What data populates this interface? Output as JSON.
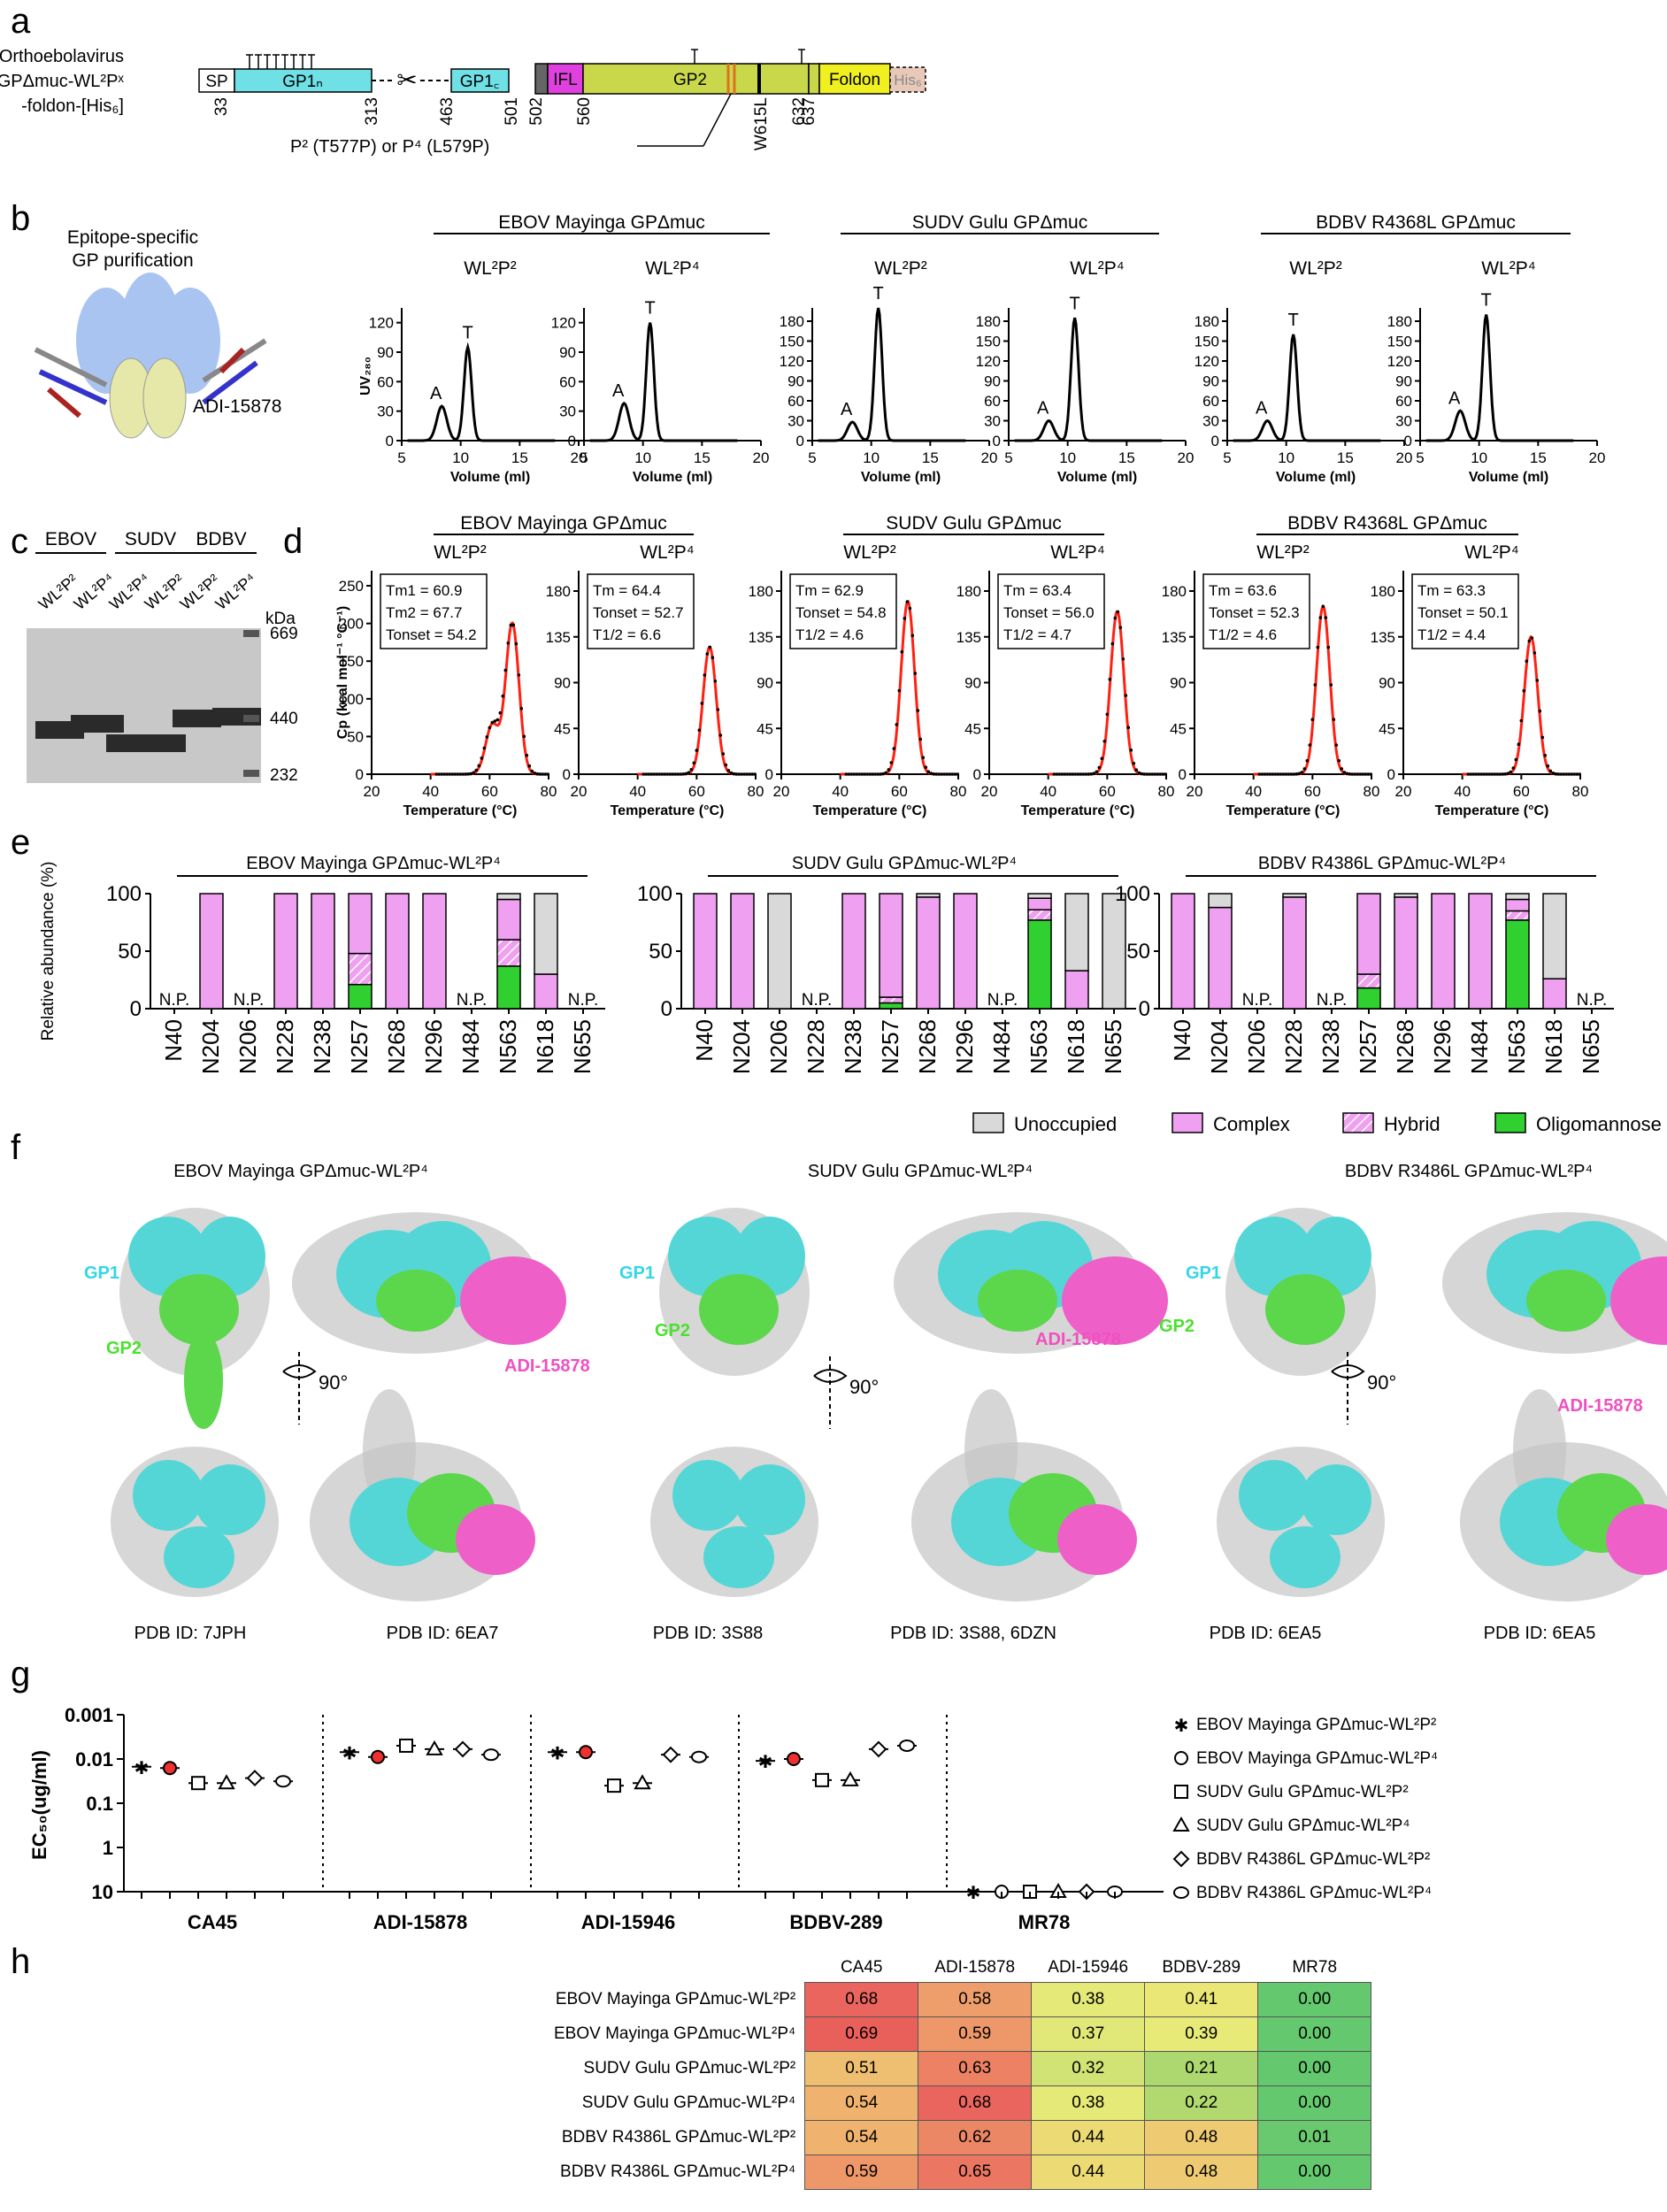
{
  "panels": {
    "a": "a",
    "b": "b",
    "c": "c",
    "d": "d",
    "e": "e",
    "f": "f",
    "g": "g",
    "h": "h"
  },
  "a": {
    "label_lines": [
      "Orthoebolavirus",
      "GPΔmuc-WL²Pˣ",
      "-foldon-[His₆]"
    ],
    "segments": [
      "SP",
      "GP1N",
      "GP1C",
      "IFL",
      "GP2",
      "Foldon",
      "His6"
    ],
    "numbers": [
      "33",
      "313",
      "463",
      "501",
      "502",
      "560",
      "W615L",
      "632",
      "637"
    ],
    "mutation_note": "P² (T577P) or P⁴ (L579P)",
    "colors": {
      "gp1": "#6fe0e6",
      "ifl": "#e040e0",
      "gp2": "#c8d84a",
      "foldon": "#f0f020",
      "his": "#e8c8b8",
      "cleave": "#e07020"
    }
  },
  "b": {
    "purification_title": [
      "Epitope-specific",
      "GP purification"
    ],
    "antibody": "ADI-15878",
    "groups": [
      "EBOV Mayinga GPΔmuc",
      "SUDV Gulu GPΔmuc",
      "BDBV R4368L GPΔmuc"
    ],
    "subtitles": [
      "WL²P²",
      "WL²P⁴",
      "WL²P²",
      "WL²P⁴",
      "WL²P²",
      "WL²P⁴"
    ],
    "ylabel": "UV₂₈₀",
    "xlabel": "Volume (ml)",
    "peak_labels": [
      "A",
      "T"
    ],
    "yticks_first": [
      "0",
      "30",
      "60",
      "90",
      "120"
    ],
    "yticks_other": [
      "0",
      "30",
      "60",
      "90",
      "120",
      "150",
      "180"
    ],
    "xticks": [
      "5",
      "10",
      "15",
      "20"
    ]
  },
  "c": {
    "groups": [
      "EBOV",
      "SUDV",
      "BDBV"
    ],
    "lanes": [
      "WL²P²",
      "WL²P⁴",
      "WL²P⁴",
      "WL²P²",
      "WL²P²",
      "WL²P⁴"
    ],
    "unit": "kDa",
    "markers": [
      "669",
      "440",
      "232"
    ]
  },
  "d": {
    "groups": [
      "EBOV Mayinga GPΔmuc",
      "SUDV Gulu GPΔmuc",
      "BDBV R4368L GPΔmuc"
    ],
    "subtitles": [
      "WL²P²",
      "WL²P⁴",
      "WL²P²",
      "WL²P⁴",
      "WL²P²",
      "WL²P⁴"
    ],
    "ylabel": "Cp (kcal mol⁻¹ °C⁻¹)",
    "xlabel": "Temperature (°C)",
    "boxes": [
      [
        "Tm1 = 60.9",
        "Tm2 = 67.7",
        "Tonset = 54.2"
      ],
      [
        "Tm = 64.4",
        "Tonset = 52.7",
        "T1/2 = 6.6"
      ],
      [
        "Tm = 62.9",
        "Tonset = 54.8",
        "T1/2 = 4.6"
      ],
      [
        "Tm = 63.4",
        "Tonset = 56.0",
        "T1/2 = 4.7"
      ],
      [
        "Tm = 63.6",
        "Tonset = 52.3",
        "T1/2 = 4.6"
      ],
      [
        "Tm = 63.3",
        "Tonset = 50.1",
        "T1/2 = 4.4"
      ]
    ],
    "yticks_first": [
      "0",
      "50",
      "100",
      "150",
      "200",
      "250"
    ],
    "yticks_other": [
      "0",
      "45",
      "90",
      "135",
      "180"
    ],
    "xticks": [
      "20",
      "40",
      "60",
      "80"
    ]
  },
  "e": {
    "titles": [
      "EBOV Mayinga GPΔmuc-WL²P⁴",
      "SUDV Gulu GPΔmuc-WL²P⁴",
      "BDBV R4386L GPΔmuc-WL²P⁴"
    ],
    "ylabel": "Relative abundance (%)",
    "np": "N.P.",
    "sites": [
      "N40",
      "N204",
      "N206",
      "N228",
      "N238",
      "N257",
      "N268",
      "N296",
      "N484",
      "N563",
      "N618",
      "N655"
    ],
    "legend": [
      "Unoccupied",
      "Complex",
      "Hybrid",
      "Oligomannose"
    ],
    "colors": {
      "unoccupied": "#d9d9d9",
      "complex": "#f0a0f0",
      "hybrid": "#f6d0f6",
      "oligomannose": "#30d030"
    }
  },
  "f": {
    "titles": [
      "EBOV Mayinga GPΔmuc-WL²P⁴",
      "SUDV Gulu GPΔmuc-WL²P⁴",
      "BDBV R3486L GPΔmuc-WL²P⁴"
    ],
    "labels": {
      "gp1": "GP1",
      "gp2": "GP2",
      "antibody": "ADI-15878",
      "rotation": "90°"
    },
    "pdb": [
      "PDB ID: 7JPH",
      "PDB ID: 6EA7",
      "PDB ID: 3S88",
      "PDB ID: 3S88, 6DZN",
      "PDB ID: 6EA5",
      "PDB ID: 6EA5"
    ]
  },
  "g": {
    "ylabel": "EC₅₀(ug/ml)",
    "yticks": [
      "0.001",
      "0.01",
      "0.1",
      "1",
      "10"
    ],
    "groups": [
      "CA45",
      "ADI-15878",
      "ADI-15946",
      "BDBV-289",
      "MR78"
    ],
    "legend": [
      "EBOV Mayinga GPΔmuc-WL²P²",
      "EBOV Mayinga GPΔmuc-WL²P⁴",
      "SUDV Gulu GPΔmuc-WL²P²",
      "SUDV Gulu GPΔmuc-WL²P⁴",
      "BDBV R4386L GPΔmuc-WL²P²",
      "BDBV R4386L GPΔmuc-WL²P⁴"
    ]
  },
  "h": {
    "columns": [
      "CA45",
      "ADI-15878",
      "ADI-15946",
      "BDBV-289",
      "MR78"
    ],
    "rows": [
      {
        "label": "EBOV Mayinga GPΔmuc-WL²P²",
        "values": [
          "0.68",
          "0.58",
          "0.38",
          "0.41",
          "0.00"
        ]
      },
      {
        "label": "EBOV Mayinga GPΔmuc-WL²P⁴",
        "values": [
          "0.69",
          "0.59",
          "0.37",
          "0.39",
          "0.00"
        ]
      },
      {
        "label": "SUDV Gulu GPΔmuc-WL²P²",
        "values": [
          "0.51",
          "0.63",
          "0.32",
          "0.21",
          "0.00"
        ]
      },
      {
        "label": "SUDV Gulu GPΔmuc-WL²P⁴",
        "values": [
          "0.54",
          "0.68",
          "0.38",
          "0.22",
          "0.00"
        ]
      },
      {
        "label": "BDBV R4386L GPΔmuc-WL²P²",
        "values": [
          "0.54",
          "0.62",
          "0.44",
          "0.48",
          "0.01"
        ]
      },
      {
        "label": "BDBV R4386L GPΔmuc-WL²P⁴",
        "values": [
          "0.59",
          "0.65",
          "0.44",
          "0.48",
          "0.00"
        ]
      }
    ]
  },
  "chart_data": [
    {
      "type": "line",
      "panel": "b",
      "xlabel": "Volume (ml)",
      "ylabel": "UV₂₈₀",
      "xlim": [
        5,
        20
      ],
      "series": [
        {
          "name": "WL²P²",
          "group": "EBOV",
          "peaks": [
            {
              "label": "A",
              "x": 8.4,
              "y": 35
            },
            {
              "label": "T",
              "x": 10.6,
              "y": 95
            }
          ]
        },
        {
          "name": "WL²P⁴",
          "group": "EBOV",
          "peaks": [
            {
              "label": "A",
              "x": 8.4,
              "y": 38
            },
            {
              "label": "T",
              "x": 10.6,
              "y": 120
            }
          ]
        },
        {
          "name": "WL²P²",
          "group": "SUDV",
          "peaks": [
            {
              "label": "A",
              "x": 8.4,
              "y": 28
            },
            {
              "label": "T",
              "x": 10.6,
              "y": 200
            }
          ]
        },
        {
          "name": "WL²P⁴",
          "group": "SUDV",
          "peaks": [
            {
              "label": "A",
              "x": 8.4,
              "y": 30
            },
            {
              "label": "T",
              "x": 10.6,
              "y": 185
            }
          ]
        },
        {
          "name": "WL²P²",
          "group": "BDBV",
          "peaks": [
            {
              "label": "A",
              "x": 8.4,
              "y": 30
            },
            {
              "label": "T",
              "x": 10.6,
              "y": 160
            }
          ]
        },
        {
          "name": "WL²P⁴",
          "group": "BDBV",
          "peaks": [
            {
              "label": "A",
              "x": 8.4,
              "y": 45
            },
            {
              "label": "T",
              "x": 10.6,
              "y": 190
            }
          ]
        }
      ]
    },
    {
      "type": "line",
      "panel": "d",
      "xlabel": "Temperature (°C)",
      "ylabel": "Cp (kcal mol⁻¹ °C⁻¹)",
      "xlim": [
        20,
        80
      ],
      "series": [
        {
          "name": "WL²P²",
          "group": "EBOV",
          "peaks": [
            {
              "x": 60.9,
              "y": 65
            },
            {
              "x": 67.7,
              "y": 200
            }
          ]
        },
        {
          "name": "WL²P⁴",
          "group": "EBOV",
          "peaks": [
            {
              "x": 64.4,
              "y": 125
            }
          ]
        },
        {
          "name": "WL²P²",
          "group": "SUDV",
          "peaks": [
            {
              "x": 62.9,
              "y": 170
            }
          ]
        },
        {
          "name": "WL²P⁴",
          "group": "SUDV",
          "peaks": [
            {
              "x": 63.4,
              "y": 160
            }
          ]
        },
        {
          "name": "WL²P²",
          "group": "BDBV",
          "peaks": [
            {
              "x": 63.6,
              "y": 165
            }
          ]
        },
        {
          "name": "WL²P⁴",
          "group": "BDBV",
          "peaks": [
            {
              "x": 63.3,
              "y": 135
            }
          ]
        }
      ]
    },
    {
      "type": "bar",
      "panel": "e",
      "categories": [
        "N40",
        "N204",
        "N206",
        "N228",
        "N238",
        "N257",
        "N268",
        "N296",
        "N484",
        "N563",
        "N618",
        "N655"
      ],
      "series": [
        {
          "name": "EBOV Mayinga GPΔmuc-WL²P⁴",
          "bars": [
            null,
            [
              0,
              100,
              0,
              0
            ],
            null,
            [
              0,
              100,
              0,
              0
            ],
            [
              0,
              100,
              0,
              0
            ],
            [
              0,
              52,
              27,
              21
            ],
            [
              0,
              100,
              0,
              0
            ],
            [
              0,
              100,
              0,
              0
            ],
            null,
            [
              5,
              35,
              23,
              37
            ],
            [
              70,
              30,
              0,
              0
            ],
            null
          ]
        },
        {
          "name": "SUDV Gulu GPΔmuc-WL²P⁴",
          "bars": [
            [
              0,
              100,
              0,
              0
            ],
            [
              0,
              100,
              0,
              0
            ],
            [
              100,
              0,
              0,
              0
            ],
            null,
            [
              0,
              100,
              0,
              0
            ],
            [
              0,
              90,
              5,
              5
            ],
            [
              3,
              97,
              0,
              0
            ],
            [
              0,
              100,
              0,
              0
            ],
            null,
            [
              4,
              10,
              9,
              77
            ],
            [
              67,
              33,
              0,
              0
            ],
            [
              100,
              0,
              0,
              0
            ]
          ]
        },
        {
          "name": "BDBV R4386L GPΔmuc-WL²P⁴",
          "bars": [
            [
              0,
              100,
              0,
              0
            ],
            [
              12,
              88,
              0,
              0
            ],
            null,
            [
              3,
              97,
              0,
              0
            ],
            null,
            [
              0,
              70,
              12,
              18
            ],
            [
              3,
              97,
              0,
              0
            ],
            [
              0,
              100,
              0,
              0
            ],
            [
              0,
              100,
              0,
              0
            ],
            [
              5,
              10,
              8,
              77
            ],
            [
              74,
              26,
              0,
              0
            ],
            null
          ]
        }
      ],
      "stack_order": [
        "Unoccupied",
        "Complex",
        "Hybrid",
        "Oligomannose"
      ]
    },
    {
      "type": "scatter",
      "panel": "g",
      "yscale": "log-reversed",
      "ylim": [
        0.001,
        10
      ],
      "categories": [
        "CA45",
        "ADI-15878",
        "ADI-15946",
        "BDBV-289",
        "MR78"
      ],
      "series": [
        {
          "name": "EBOV Mayinga GPΔmuc-WL²P²",
          "values": [
            0.015,
            0.007,
            0.007,
            0.011,
            10
          ]
        },
        {
          "name": "EBOV Mayinga GPΔmuc-WL²P⁴",
          "values": [
            0.016,
            0.009,
            0.007,
            0.01,
            10
          ]
        },
        {
          "name": "SUDV Gulu GPΔmuc-WL²P²",
          "values": [
            0.035,
            0.005,
            0.04,
            0.03,
            10
          ]
        },
        {
          "name": "SUDV Gulu GPΔmuc-WL²P⁴",
          "values": [
            0.035,
            0.006,
            0.035,
            0.03,
            10
          ]
        },
        {
          "name": "BDBV R4386L GPΔmuc-WL²P²",
          "values": [
            0.027,
            0.006,
            0.008,
            0.006,
            10
          ]
        },
        {
          "name": "BDBV R4386L GPΔmuc-WL²P⁴",
          "values": [
            0.032,
            0.008,
            0.009,
            0.005,
            10
          ]
        }
      ]
    }
  ]
}
